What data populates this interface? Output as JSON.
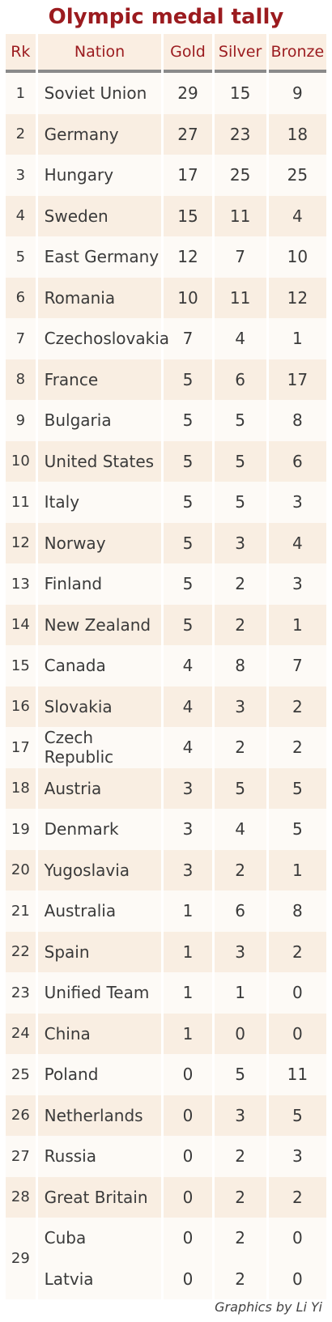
{
  "chart_data": {
    "type": "table",
    "title": "Olympic medal tally",
    "columns": [
      "Rk",
      "Nation",
      "Gold",
      "Silver",
      "Bronze"
    ],
    "rows": [
      {
        "rank": "1",
        "nation": "Soviet Union",
        "gold": 29,
        "silver": 15,
        "bronze": 9
      },
      {
        "rank": "2",
        "nation": "Germany",
        "gold": 27,
        "silver": 23,
        "bronze": 18
      },
      {
        "rank": "3",
        "nation": "Hungary",
        "gold": 17,
        "silver": 25,
        "bronze": 25
      },
      {
        "rank": "4",
        "nation": "Sweden",
        "gold": 15,
        "silver": 11,
        "bronze": 4
      },
      {
        "rank": "5",
        "nation": "East Germany",
        "gold": 12,
        "silver": 7,
        "bronze": 10
      },
      {
        "rank": "6",
        "nation": "Romania",
        "gold": 10,
        "silver": 11,
        "bronze": 12
      },
      {
        "rank": "7",
        "nation": "Czechoslovakia",
        "gold": 7,
        "silver": 4,
        "bronze": 1
      },
      {
        "rank": "8",
        "nation": "France",
        "gold": 5,
        "silver": 6,
        "bronze": 17
      },
      {
        "rank": "9",
        "nation": "Bulgaria",
        "gold": 5,
        "silver": 5,
        "bronze": 8
      },
      {
        "rank": "10",
        "nation": "United States",
        "gold": 5,
        "silver": 5,
        "bronze": 6
      },
      {
        "rank": "11",
        "nation": "Italy",
        "gold": 5,
        "silver": 5,
        "bronze": 3
      },
      {
        "rank": "12",
        "nation": "Norway",
        "gold": 5,
        "silver": 3,
        "bronze": 4
      },
      {
        "rank": "13",
        "nation": "Finland",
        "gold": 5,
        "silver": 2,
        "bronze": 3
      },
      {
        "rank": "14",
        "nation": "New Zealand",
        "gold": 5,
        "silver": 2,
        "bronze": 1
      },
      {
        "rank": "15",
        "nation": "Canada",
        "gold": 4,
        "silver": 8,
        "bronze": 7
      },
      {
        "rank": "16",
        "nation": "Slovakia",
        "gold": 4,
        "silver": 3,
        "bronze": 2
      },
      {
        "rank": "17",
        "nation": "Czech Republic",
        "gold": 4,
        "silver": 2,
        "bronze": 2
      },
      {
        "rank": "18",
        "nation": "Austria",
        "gold": 3,
        "silver": 5,
        "bronze": 5
      },
      {
        "rank": "19",
        "nation": "Denmark",
        "gold": 3,
        "silver": 4,
        "bronze": 5
      },
      {
        "rank": "20",
        "nation": "Yugoslavia",
        "gold": 3,
        "silver": 2,
        "bronze": 1
      },
      {
        "rank": "21",
        "nation": "Australia",
        "gold": 1,
        "silver": 6,
        "bronze": 8
      },
      {
        "rank": "22",
        "nation": "Spain",
        "gold": 1,
        "silver": 3,
        "bronze": 2
      },
      {
        "rank": "23",
        "nation": "Unified Team",
        "gold": 1,
        "silver": 1,
        "bronze": 0
      },
      {
        "rank": "24",
        "nation": "China",
        "gold": 1,
        "silver": 0,
        "bronze": 0
      },
      {
        "rank": "25",
        "nation": "Poland",
        "gold": 0,
        "silver": 5,
        "bronze": 11
      },
      {
        "rank": "26",
        "nation": "Netherlands",
        "gold": 0,
        "silver": 3,
        "bronze": 5
      },
      {
        "rank": "27",
        "nation": "Russia",
        "gold": 0,
        "silver": 2,
        "bronze": 3
      },
      {
        "rank": "28",
        "nation": "Great Britain",
        "gold": 0,
        "silver": 2,
        "bronze": 2
      },
      {
        "rank": "29",
        "nation": "Cuba",
        "gold": 0,
        "silver": 2,
        "bronze": 0
      },
      {
        "rank": "29",
        "nation": "Latvia",
        "gold": 0,
        "silver": 2,
        "bronze": 0
      }
    ]
  },
  "credit": "Graphics by Li Yi",
  "colors": {
    "title": "#9b1b1f",
    "header_bg": "#faeee2",
    "row_light": "#fdfaf6",
    "row_dark": "#f9eee2",
    "header_rule": "#8a8a8a"
  }
}
